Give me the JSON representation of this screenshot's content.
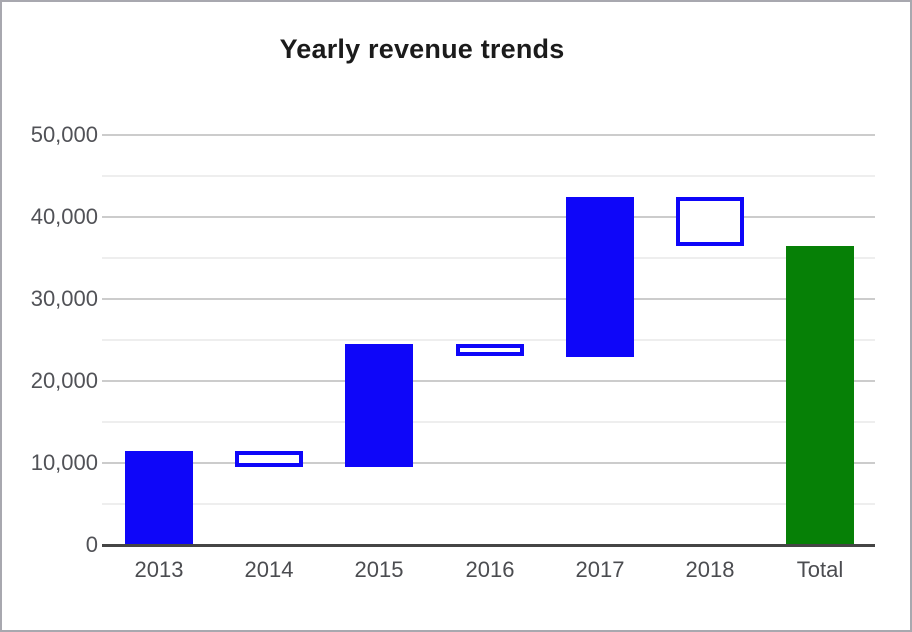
{
  "window": {
    "background": "#ffffff",
    "border_color": "#a8a8af"
  },
  "chart_data": {
    "type": "waterfall",
    "title": "Yearly revenue trends",
    "categories": [
      "2013",
      "2014",
      "2015",
      "2016",
      "2017",
      "2018",
      "Total"
    ],
    "series": [
      {
        "name": "2013",
        "start": 0,
        "end": 11500,
        "kind": "increase"
      },
      {
        "name": "2014",
        "start": 11500,
        "end": 9500,
        "kind": "decrease"
      },
      {
        "name": "2015",
        "start": 9500,
        "end": 24500,
        "kind": "increase"
      },
      {
        "name": "2016",
        "start": 24500,
        "end": 23000,
        "kind": "decrease"
      },
      {
        "name": "2017",
        "start": 23000,
        "end": 42500,
        "kind": "increase"
      },
      {
        "name": "2018",
        "start": 42500,
        "end": 36500,
        "kind": "decrease"
      },
      {
        "name": "Total",
        "start": 0,
        "end": 36500,
        "kind": "total"
      }
    ],
    "ylim": [
      0,
      50000
    ],
    "y_axis": {
      "major_tick_values": [
        0,
        10000,
        20000,
        30000,
        40000,
        50000
      ],
      "major_tick_labels": [
        "0",
        "10,000",
        "20,000",
        "30,000",
        "40,000",
        "50,000"
      ],
      "minor_tick_values": [
        5000,
        15000,
        25000,
        35000,
        45000
      ]
    },
    "legend": "none",
    "grid": {
      "major_color": "#cccccc",
      "minor_color": "#eeeeee",
      "axis_color": "#454545"
    },
    "colors": {
      "increase_fill": "#0e06f9",
      "decrease_fill": "#ffffff",
      "decrease_border": "#0e06f9",
      "total_fill": "#068006"
    }
  }
}
